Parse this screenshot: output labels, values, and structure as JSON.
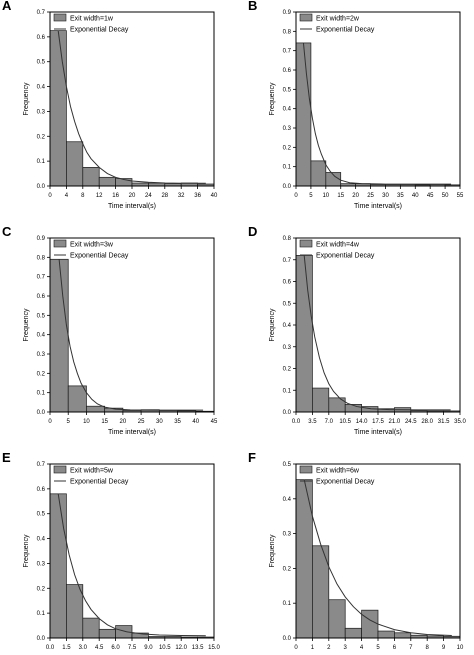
{
  "chart_data": [
    {
      "type": "bar",
      "panel_label": "A",
      "bar_width": 4,
      "x": [
        2,
        6,
        10,
        14,
        18,
        22,
        26,
        30,
        34,
        38
      ],
      "values": [
        0.625,
        0.178,
        0.075,
        0.035,
        0.03,
        0.012,
        0.012,
        0.01,
        0.012,
        0.008
      ],
      "xlim": [
        0,
        40
      ],
      "xticks": [
        "0",
        "4",
        "8",
        "12",
        "16",
        "20",
        "24",
        "28",
        "32",
        "36",
        "40"
      ],
      "ylim": [
        0,
        0.7
      ],
      "yticks": [
        "0.0",
        "0.1",
        "0.2",
        "0.3",
        "0.4",
        "0.5",
        "0.6",
        "0.7"
      ],
      "xlabel": "Time interval(s)",
      "ylabel": "Frequency",
      "legend": {
        "bars": "Exit width=1w",
        "curve": "Exponential Decay",
        "position": "top-left"
      },
      "fit_curve": [
        [
          2,
          0.625
        ],
        [
          3,
          0.5
        ],
        [
          4,
          0.4
        ],
        [
          5,
          0.32
        ],
        [
          6,
          0.26
        ],
        [
          7,
          0.21
        ],
        [
          8,
          0.17
        ],
        [
          9,
          0.135
        ],
        [
          10,
          0.11
        ],
        [
          12,
          0.075
        ],
        [
          14,
          0.05
        ],
        [
          16,
          0.035
        ],
        [
          18,
          0.026
        ],
        [
          20,
          0.02
        ],
        [
          24,
          0.015
        ],
        [
          28,
          0.012
        ],
        [
          32,
          0.011
        ],
        [
          36,
          0.011
        ],
        [
          38,
          0.011
        ]
      ]
    },
    {
      "type": "bar",
      "panel_label": "B",
      "bar_width": 5,
      "x": [
        2.5,
        7.5,
        12.5,
        17.5,
        22.5,
        27.5,
        32.5,
        37.5,
        42.5,
        47.5,
        52.5
      ],
      "values": [
        0.74,
        0.13,
        0.07,
        0.012,
        0.012,
        0.008,
        0.008,
        0.008,
        0.006,
        0.008,
        0.006
      ],
      "xlim": [
        0,
        55
      ],
      "xticks": [
        "0",
        "5",
        "10",
        "15",
        "20",
        "25",
        "30",
        "35",
        "40",
        "45",
        "50",
        "55"
      ],
      "ylim": [
        0,
        0.9
      ],
      "yticks": [
        "0.0",
        "0.1",
        "0.2",
        "0.3",
        "0.4",
        "0.5",
        "0.6",
        "0.7",
        "0.8",
        "0.9"
      ],
      "xlabel": "Time interval(s)",
      "ylabel": "Frequency",
      "legend": {
        "bars": "Exit width=2w",
        "curve": "Exponential Decay",
        "position": "top-left"
      },
      "fit_curve": [
        [
          2.5,
          0.74
        ],
        [
          3.5,
          0.58
        ],
        [
          4.5,
          0.45
        ],
        [
          5.5,
          0.35
        ],
        [
          6.5,
          0.27
        ],
        [
          7.5,
          0.21
        ],
        [
          8.5,
          0.165
        ],
        [
          10,
          0.11
        ],
        [
          11.5,
          0.075
        ],
        [
          13,
          0.05
        ],
        [
          15,
          0.03
        ],
        [
          18,
          0.017
        ],
        [
          22,
          0.012
        ],
        [
          30,
          0.01
        ],
        [
          40,
          0.01
        ],
        [
          52,
          0.01
        ]
      ]
    },
    {
      "type": "bar",
      "panel_label": "C",
      "bar_width": 5,
      "x": [
        2.5,
        7.5,
        12.5,
        17.5,
        22.5,
        27.5,
        32.5,
        37.5,
        42.5
      ],
      "values": [
        0.79,
        0.135,
        0.03,
        0.02,
        0.008,
        0.012,
        0.008,
        0.006,
        0.004
      ],
      "xlim": [
        0,
        45
      ],
      "xticks": [
        "0",
        "5",
        "10",
        "15",
        "20",
        "25",
        "30",
        "35",
        "40",
        "45"
      ],
      "ylim": [
        0,
        0.9
      ],
      "yticks": [
        "0.0",
        "0.1",
        "0.2",
        "0.3",
        "0.4",
        "0.5",
        "0.6",
        "0.7",
        "0.8",
        "0.9"
      ],
      "xlabel": "Time interval(s)",
      "ylabel": "Frequency",
      "legend": {
        "bars": "Exit width=3w",
        "curve": "Exponential Decay",
        "position": "top-left"
      },
      "fit_curve": [
        [
          2.5,
          0.79
        ],
        [
          3.5,
          0.6
        ],
        [
          4.5,
          0.45
        ],
        [
          5.5,
          0.34
        ],
        [
          6.5,
          0.26
        ],
        [
          7.5,
          0.2
        ],
        [
          8.5,
          0.15
        ],
        [
          10,
          0.1
        ],
        [
          11.5,
          0.065
        ],
        [
          13,
          0.042
        ],
        [
          15,
          0.025
        ],
        [
          18,
          0.015
        ],
        [
          22,
          0.011
        ],
        [
          30,
          0.01
        ],
        [
          42,
          0.01
        ]
      ]
    },
    {
      "type": "bar",
      "panel_label": "D",
      "bar_width": 3.5,
      "x": [
        1.75,
        5.25,
        8.75,
        12.25,
        15.75,
        19.25,
        22.75,
        26.25,
        29.75,
        33.25
      ],
      "values": [
        0.72,
        0.11,
        0.065,
        0.035,
        0.025,
        0.015,
        0.02,
        0.006,
        0.005,
        0.005
      ],
      "xlim": [
        0,
        35
      ],
      "xticks": [
        "0.0",
        "3.5",
        "7.0",
        "10.5",
        "14.0",
        "17.5",
        "21.0",
        "24.5",
        "28.0",
        "31.5",
        "35.0"
      ],
      "ylim": [
        0,
        0.8
      ],
      "yticks": [
        "0.0",
        "0.1",
        "0.2",
        "0.3",
        "0.4",
        "0.5",
        "0.6",
        "0.7",
        "0.8"
      ],
      "xlabel": "Time interval(s)",
      "ylabel": "Frequency",
      "legend": {
        "bars": "Exit width=4w",
        "curve": "Exponential Decay",
        "position": "top-left"
      },
      "fit_curve": [
        [
          1.75,
          0.72
        ],
        [
          2.5,
          0.56
        ],
        [
          3.25,
          0.44
        ],
        [
          4,
          0.345
        ],
        [
          5,
          0.25
        ],
        [
          6,
          0.18
        ],
        [
          7,
          0.13
        ],
        [
          8,
          0.095
        ],
        [
          9.5,
          0.06
        ],
        [
          11,
          0.04
        ],
        [
          13,
          0.025
        ],
        [
          16,
          0.015
        ],
        [
          20,
          0.011
        ],
        [
          26,
          0.01
        ],
        [
          33,
          0.01
        ]
      ]
    },
    {
      "type": "bar",
      "panel_label": "E",
      "bar_width": 1.5,
      "x": [
        0.75,
        2.25,
        3.75,
        5.25,
        6.75,
        8.25,
        9.75,
        11.25,
        12.75,
        14.25
      ],
      "values": [
        0.58,
        0.215,
        0.08,
        0.035,
        0.05,
        0.02,
        0.006,
        0.006,
        0.004,
        0.004
      ],
      "xlim": [
        0,
        15
      ],
      "xticks": [
        "0.0",
        "1.5",
        "3.0",
        "4.5",
        "6.0",
        "7.5",
        "9.0",
        "10.5",
        "12.0",
        "13.5",
        "15.0"
      ],
      "ylim": [
        0,
        0.7
      ],
      "yticks": [
        "0.0",
        "0.1",
        "0.2",
        "0.3",
        "0.4",
        "0.5",
        "0.6",
        "0.7"
      ],
      "xlabel": "Time interval(s)",
      "ylabel": "Frequency",
      "legend": {
        "bars": "Exit width=5w",
        "curve": "Exponential Decay",
        "position": "top-left"
      },
      "fit_curve": [
        [
          0.75,
          0.58
        ],
        [
          1.25,
          0.44
        ],
        [
          1.75,
          0.335
        ],
        [
          2.25,
          0.255
        ],
        [
          2.75,
          0.195
        ],
        [
          3.25,
          0.15
        ],
        [
          3.75,
          0.115
        ],
        [
          4.5,
          0.078
        ],
        [
          5.25,
          0.053
        ],
        [
          6,
          0.037
        ],
        [
          7,
          0.025
        ],
        [
          8.5,
          0.016
        ],
        [
          10,
          0.012
        ],
        [
          12,
          0.01
        ],
        [
          14.25,
          0.009
        ]
      ]
    },
    {
      "type": "bar",
      "panel_label": "F",
      "bar_width": 1,
      "x": [
        0.5,
        1.5,
        2.5,
        3.5,
        4.5,
        5.5,
        6.5,
        7.5,
        8.5,
        9.5
      ],
      "values": [
        0.455,
        0.265,
        0.11,
        0.028,
        0.08,
        0.02,
        0.015,
        0.008,
        0.006,
        0.005
      ],
      "xlim": [
        0,
        10
      ],
      "xticks": [
        "0",
        "1",
        "2",
        "3",
        "4",
        "5",
        "6",
        "7",
        "8",
        "9",
        "10"
      ],
      "ylim": [
        0,
        0.5
      ],
      "yticks": [
        "0.0",
        "0.1",
        "0.2",
        "0.3",
        "0.4",
        "0.5"
      ],
      "xlabel": "Time interval(s)",
      "ylabel": "Frequency",
      "legend": {
        "bars": "Exit width=6w",
        "curve": "Exponential Decay",
        "position": "top-left"
      },
      "fit_curve": [
        [
          0.5,
          0.455
        ],
        [
          1,
          0.35
        ],
        [
          1.5,
          0.27
        ],
        [
          2,
          0.205
        ],
        [
          2.5,
          0.155
        ],
        [
          3,
          0.118
        ],
        [
          3.5,
          0.09
        ],
        [
          4,
          0.068
        ],
        [
          4.5,
          0.052
        ],
        [
          5,
          0.04
        ],
        [
          6,
          0.024
        ],
        [
          7,
          0.015
        ],
        [
          8,
          0.01
        ],
        [
          9.5,
          0.007
        ]
      ]
    }
  ]
}
